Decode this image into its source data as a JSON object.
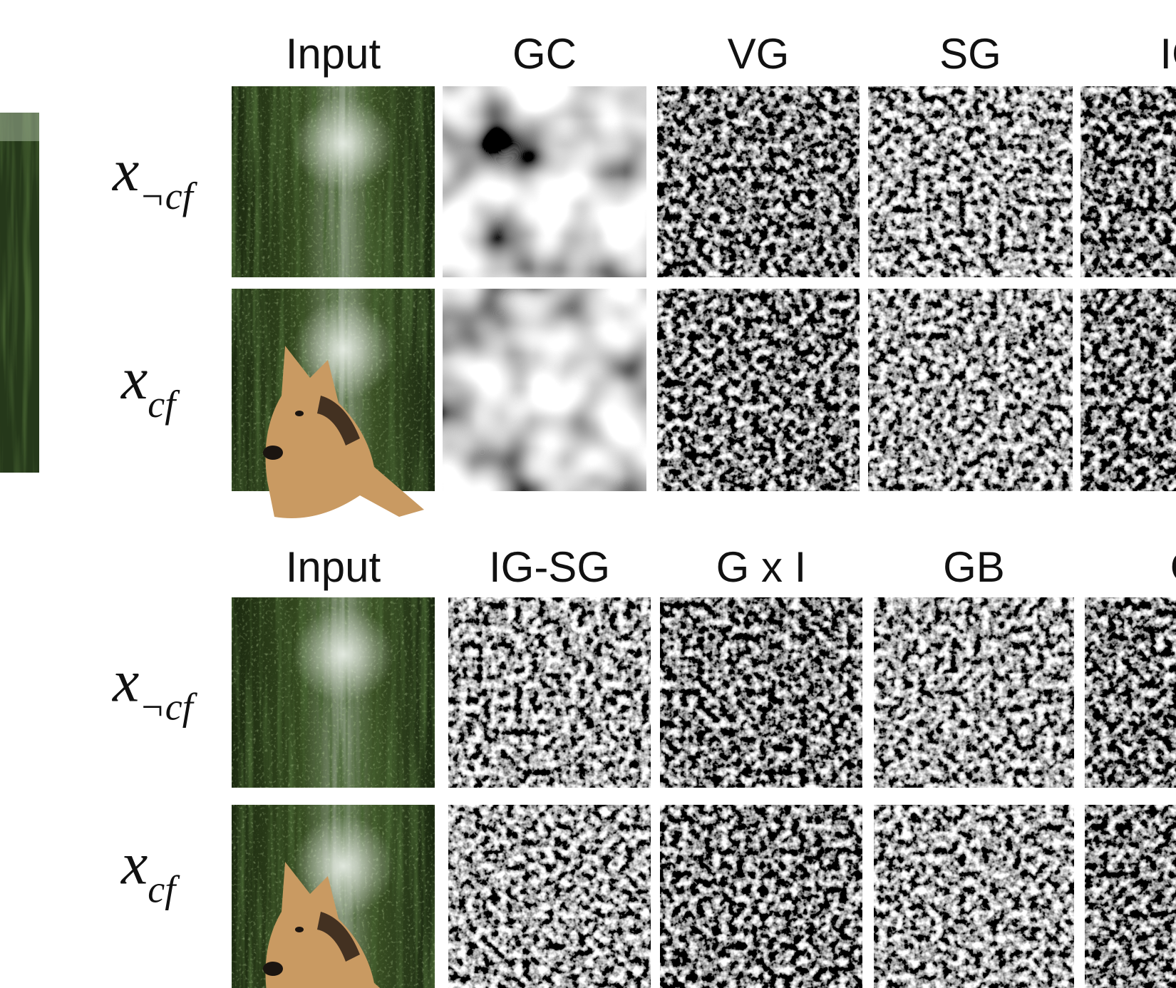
{
  "panels": [
    {
      "headers": [
        "Input",
        "GC",
        "VG",
        "SG",
        "IG"
      ],
      "rows": [
        {
          "label": {
            "base": "x",
            "sub": "¬cf"
          }
        },
        {
          "label": {
            "base": "x",
            "sub": "cf"
          }
        }
      ]
    },
    {
      "headers": [
        "Input",
        "IG-SG",
        "G x I",
        "GB",
        "G"
      ],
      "rows": [
        {
          "label": {
            "base": "x",
            "sub": "¬cf"
          }
        },
        {
          "label": {
            "base": "x",
            "sub": "cf"
          }
        }
      ]
    }
  ]
}
